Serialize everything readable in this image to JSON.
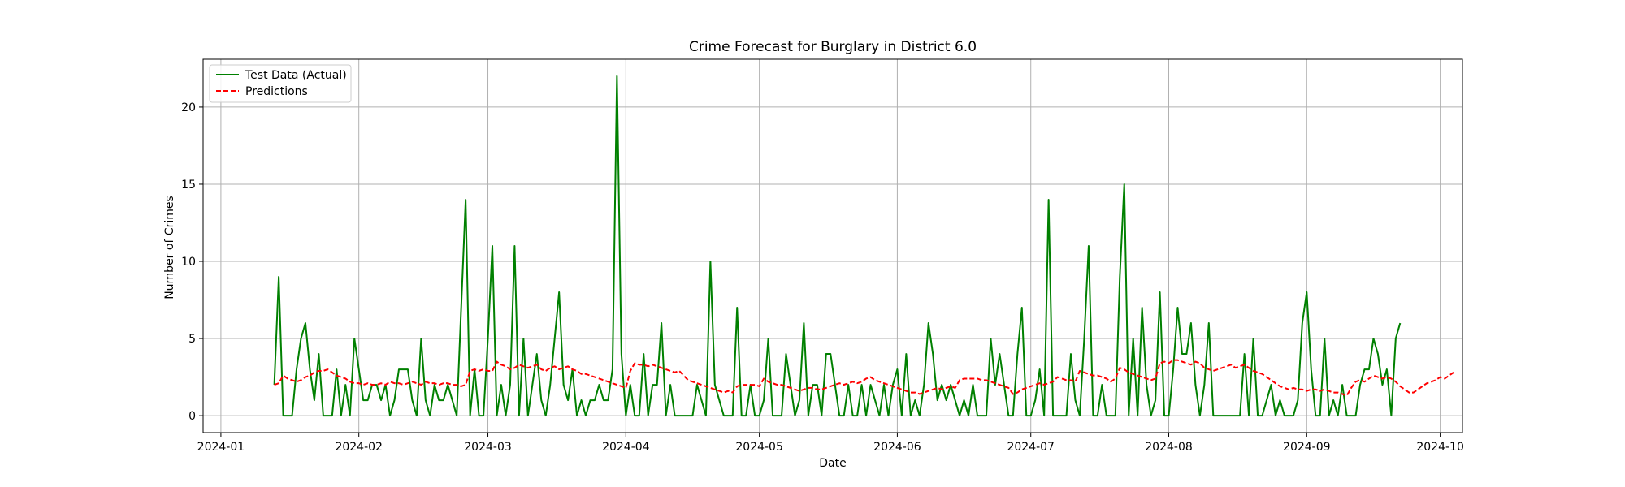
{
  "chart_data": {
    "type": "line",
    "title": "Crime Forecast for Burglary in District 6.0",
    "xlabel": "Date",
    "ylabel": "Number of Crimes",
    "x_start": "2024-01-13",
    "x_end": "2024-09-21",
    "xlim": [
      "2023-12-28",
      "2024-10-06"
    ],
    "ylim": [
      -1.1,
      23.1
    ],
    "x_ticks": [
      "2024-01",
      "2024-02",
      "2024-03",
      "2024-04",
      "2024-05",
      "2024-06",
      "2024-07",
      "2024-08",
      "2024-09",
      "2024-10"
    ],
    "y_ticks": [
      0,
      5,
      10,
      15,
      20
    ],
    "grid": true,
    "legend": "upper-left",
    "series": [
      {
        "name": "Test Data (Actual)",
        "color": "#008000",
        "style": "solid",
        "values": [
          2,
          9,
          0,
          0,
          0,
          3,
          5,
          6,
          3,
          1,
          4,
          0,
          0,
          0,
          3,
          0,
          2,
          0,
          5,
          3,
          1,
          1,
          2,
          2,
          1,
          2,
          0,
          1,
          3,
          3,
          3,
          1,
          0,
          5,
          1,
          0,
          2,
          1,
          1,
          2,
          1,
          0,
          7,
          14,
          0,
          3,
          0,
          0,
          5,
          11,
          0,
          2,
          0,
          2,
          11,
          0,
          5,
          0,
          2,
          4,
          1,
          0,
          2,
          5,
          8,
          2,
          1,
          3,
          0,
          1,
          0,
          1,
          1,
          2,
          1,
          1,
          3,
          22,
          4,
          0,
          2,
          0,
          0,
          4,
          0,
          2,
          2,
          6,
          0,
          2,
          0,
          0,
          0,
          0,
          0,
          2,
          1,
          0,
          10,
          2,
          1,
          0,
          0,
          0,
          7,
          0,
          0,
          2,
          0,
          0,
          1,
          5,
          0,
          0,
          0,
          4,
          2,
          0,
          1,
          6,
          0,
          2,
          2,
          0,
          4,
          4,
          2,
          0,
          0,
          2,
          0,
          0,
          2,
          0,
          2,
          1,
          0,
          2,
          0,
          2,
          3,
          0,
          4,
          0,
          1,
          0,
          2,
          6,
          4,
          1,
          2,
          1,
          2,
          1,
          0,
          1,
          0,
          2,
          0,
          0,
          0,
          5,
          2,
          4,
          2,
          0,
          0,
          4,
          7,
          0,
          0,
          1,
          3,
          0,
          14,
          0,
          0,
          0,
          0,
          4,
          1,
          0,
          5,
          11,
          0,
          0,
          2,
          0,
          0,
          0,
          9,
          15,
          0,
          5,
          0,
          7,
          2,
          0,
          1,
          8,
          0,
          0,
          3,
          7,
          4,
          4,
          6,
          2,
          0,
          2,
          6,
          0,
          0,
          0,
          0,
          0,
          0,
          0,
          4,
          0,
          5,
          0,
          0,
          1,
          2,
          0,
          1,
          0,
          0,
          0,
          1,
          6,
          8,
          3,
          0,
          0,
          5,
          0,
          1,
          0,
          2,
          0,
          0,
          0,
          2,
          3,
          3,
          5,
          4,
          2,
          3,
          0,
          5,
          6
        ]
      },
      {
        "name": "Predictions",
        "color": "#ff0000",
        "style": "dashed",
        "values": [
          2.0,
          2.1,
          2.6,
          2.4,
          2.3,
          2.2,
          2.3,
          2.5,
          2.6,
          2.8,
          2.9,
          2.9,
          3.0,
          2.8,
          2.6,
          2.5,
          2.4,
          2.2,
          2.1,
          2.1,
          2.0,
          2.1,
          2.0,
          2.0,
          2.1,
          2.0,
          2.2,
          2.1,
          2.1,
          2.0,
          2.1,
          2.2,
          2.1,
          2.0,
          2.2,
          2.1,
          2.1,
          2.0,
          2.1,
          2.1,
          2.0,
          2.0,
          1.9,
          2.0,
          2.9,
          3.0,
          2.9,
          3.0,
          2.9,
          2.9,
          3.5,
          3.3,
          3.2,
          3.0,
          3.1,
          3.3,
          3.2,
          3.1,
          3.2,
          3.3,
          3.0,
          2.9,
          3.1,
          3.2,
          3.0,
          3.1,
          3.2,
          3.0,
          2.9,
          2.7,
          2.7,
          2.6,
          2.5,
          2.4,
          2.3,
          2.2,
          2.1,
          2.0,
          1.9,
          1.8,
          2.9,
          3.4,
          3.3,
          3.3,
          3.2,
          3.3,
          3.2,
          3.1,
          3.0,
          2.9,
          2.8,
          2.9,
          2.6,
          2.3,
          2.2,
          2.1,
          2.0,
          1.9,
          1.8,
          1.7,
          1.6,
          1.5,
          1.6,
          1.5,
          1.9,
          2.0,
          2.0,
          2.0,
          2.0,
          1.9,
          2.4,
          2.2,
          2.1,
          2.0,
          2.0,
          1.9,
          1.8,
          1.7,
          1.6,
          1.7,
          1.8,
          1.8,
          1.7,
          1.7,
          1.8,
          1.9,
          2.0,
          2.1,
          2.0,
          2.1,
          2.2,
          2.1,
          2.2,
          2.4,
          2.5,
          2.3,
          2.2,
          2.1,
          2.0,
          1.9,
          1.8,
          1.7,
          1.6,
          1.5,
          1.5,
          1.4,
          1.5,
          1.6,
          1.7,
          1.8,
          1.7,
          1.8,
          1.9,
          1.8,
          2.3,
          2.4,
          2.4,
          2.4,
          2.4,
          2.3,
          2.3,
          2.2,
          2.1,
          2.0,
          1.9,
          1.8,
          1.4,
          1.5,
          1.7,
          1.8,
          1.9,
          2.0,
          2.1,
          2.0,
          2.1,
          2.2,
          2.5,
          2.4,
          2.3,
          2.3,
          2.2,
          2.9,
          2.8,
          2.7,
          2.6,
          2.6,
          2.5,
          2.4,
          2.2,
          2.4,
          3.1,
          3.0,
          2.8,
          2.7,
          2.6,
          2.5,
          2.4,
          2.3,
          2.4,
          3.4,
          3.5,
          3.4,
          3.6,
          3.6,
          3.5,
          3.4,
          3.3,
          3.5,
          3.4,
          3.1,
          3.0,
          2.9,
          3.0,
          3.1,
          3.2,
          3.3,
          3.1,
          3.2,
          3.3,
          3.1,
          2.9,
          2.8,
          2.7,
          2.5,
          2.3,
          2.1,
          1.9,
          1.8,
          1.7,
          1.8,
          1.7,
          1.7,
          1.6,
          1.7,
          1.7,
          1.6,
          1.7,
          1.6,
          1.5,
          1.5,
          1.4,
          1.3,
          1.8,
          2.2,
          2.3,
          2.2,
          2.4,
          2.6,
          2.5,
          2.4,
          2.5,
          2.4,
          2.2,
          1.9,
          1.7,
          1.5,
          1.5,
          1.7,
          1.9,
          2.1,
          2.2,
          2.3,
          2.5,
          2.4,
          2.6,
          2.8
        ]
      }
    ]
  }
}
